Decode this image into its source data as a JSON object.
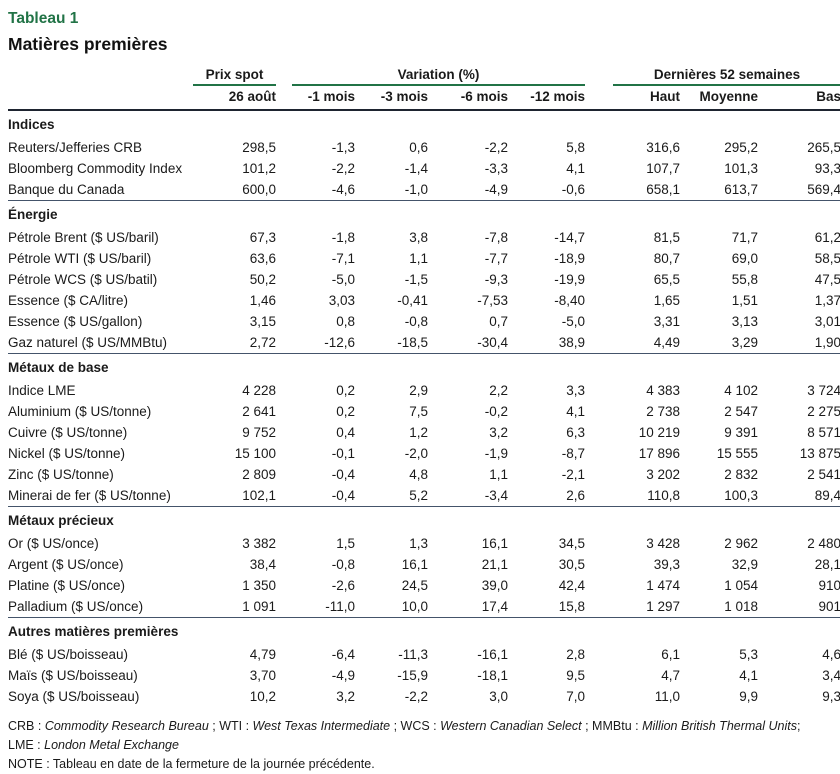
{
  "title": {
    "tag": "Tableau 1",
    "subtitle": "Matières premières"
  },
  "colors": {
    "accent_green": "#217346",
    "rule_thick": "#1e2430",
    "rule_thin": "#44546a"
  },
  "table": {
    "groups": [
      "Prix spot",
      "Variation (%)",
      "Dernières 52 semaines"
    ],
    "columns": [
      "26 août",
      "-1 mois",
      "-3 mois",
      "-6 mois",
      "-12 mois",
      "Haut",
      "Moyenne",
      "Bas"
    ],
    "sections": [
      {
        "name": "Indices",
        "rows": [
          {
            "label": "Reuters/Jefferies CRB",
            "values": [
              "298,5",
              "-1,3",
              "0,6",
              "-2,2",
              "5,8",
              "316,6",
              "295,2",
              "265,5"
            ]
          },
          {
            "label": "Bloomberg Commodity Index",
            "values": [
              "101,2",
              "-2,2",
              "-1,4",
              "-3,3",
              "4,1",
              "107,7",
              "101,3",
              "93,3"
            ]
          },
          {
            "label": "Banque du Canada",
            "values": [
              "600,0",
              "-4,6",
              "-1,0",
              "-4,9",
              "-0,6",
              "658,1",
              "613,7",
              "569,4"
            ]
          }
        ]
      },
      {
        "name": "Énergie",
        "rows": [
          {
            "label": "Pétrole Brent ($ US/baril)",
            "values": [
              "67,3",
              "-1,8",
              "3,8",
              "-7,8",
              "-14,7",
              "81,5",
              "71,7",
              "61,2"
            ]
          },
          {
            "label": "Pétrole WTI ($ US/baril)",
            "values": [
              "63,6",
              "-7,1",
              "1,1",
              "-7,7",
              "-18,9",
              "80,7",
              "69,0",
              "58,5"
            ]
          },
          {
            "label": "Pétrole WCS ($ US/batil)",
            "values": [
              "50,2",
              "-5,0",
              "-1,5",
              "-9,3",
              "-19,9",
              "65,5",
              "55,8",
              "47,5"
            ]
          },
          {
            "label": "Essence ($ CA/litre)",
            "values": [
              "1,46",
              "3,03",
              "-0,41",
              "-7,53",
              "-8,40",
              "1,65",
              "1,51",
              "1,37"
            ]
          },
          {
            "label": "Essence ($ US/gallon)",
            "values": [
              "3,15",
              "0,8",
              "-0,8",
              "0,7",
              "-5,0",
              "3,31",
              "3,13",
              "3,01"
            ]
          },
          {
            "label": "Gaz naturel ($ US/MMBtu)",
            "values": [
              "2,72",
              "-12,6",
              "-18,5",
              "-30,4",
              "38,9",
              "4,49",
              "3,29",
              "1,90"
            ]
          }
        ]
      },
      {
        "name": "Métaux de base",
        "rows": [
          {
            "label": "Indice LME",
            "values": [
              "4 228",
              "0,2",
              "2,9",
              "2,2",
              "3,3",
              "4 383",
              "4 102",
              "3 724"
            ]
          },
          {
            "label": "Aluminium ($ US/tonne)",
            "values": [
              "2 641",
              "0,2",
              "7,5",
              "-0,2",
              "4,1",
              "2 738",
              "2 547",
              "2 275"
            ]
          },
          {
            "label": "Cuivre ($ US/tonne)",
            "values": [
              "9 752",
              "0,4",
              "1,2",
              "3,2",
              "6,3",
              "10 219",
              "9 391",
              "8 571"
            ]
          },
          {
            "label": "Nickel ($ US/tonne)",
            "values": [
              "15 100",
              "-0,1",
              "-2,0",
              "-1,9",
              "-8,7",
              "17 896",
              "15 555",
              "13 875"
            ]
          },
          {
            "label": "Zinc ($ US/tonne)",
            "values": [
              "2 809",
              "-0,4",
              "4,8",
              "1,1",
              "-2,1",
              "3 202",
              "2 832",
              "2 541"
            ]
          },
          {
            "label": "Minerai de fer ($ US/tonne)",
            "values": [
              "102,1",
              "-0,4",
              "5,2",
              "-3,4",
              "2,6",
              "110,8",
              "100,3",
              "89,4"
            ]
          }
        ]
      },
      {
        "name": "Métaux précieux",
        "rows": [
          {
            "label": "Or ($ US/once)",
            "values": [
              "3 382",
              "1,5",
              "1,3",
              "16,1",
              "34,5",
              "3 428",
              "2 962",
              "2 480"
            ]
          },
          {
            "label": "Argent ($ US/once)",
            "values": [
              "38,4",
              "-0,8",
              "16,1",
              "21,1",
              "30,5",
              "39,3",
              "32,9",
              "28,1"
            ]
          },
          {
            "label": "Platine ($ US/once)",
            "values": [
              "1 350",
              "-2,6",
              "24,5",
              "39,0",
              "42,4",
              "1 474",
              "1 054",
              "910"
            ]
          },
          {
            "label": "Palladium ($ US/once)",
            "values": [
              "1 091",
              "-11,0",
              "10,0",
              "17,4",
              "15,8",
              "1 297",
              "1 018",
              "901"
            ]
          }
        ]
      },
      {
        "name": "Autres matières premières",
        "rows": [
          {
            "label": "Blé ($ US/boisseau)",
            "values": [
              "4,79",
              "-6,4",
              "-11,3",
              "-16,1",
              "2,8",
              "6,1",
              "5,3",
              "4,6"
            ]
          },
          {
            "label": "Maïs ($ US/boisseau)",
            "values": [
              "3,70",
              "-4,9",
              "-15,9",
              "-18,1",
              "9,5",
              "4,7",
              "4,1",
              "3,4"
            ]
          },
          {
            "label": "Soya ($ US/boisseau)",
            "values": [
              "10,2",
              "3,2",
              "-2,2",
              "3,0",
              "7,0",
              "11,0",
              "9,9",
              "9,3"
            ]
          }
        ]
      }
    ]
  },
  "footnotes": [
    [
      {
        "text": "CRB : ",
        "italic": false
      },
      {
        "text": "Commodity Research Bureau",
        "italic": true
      },
      {
        "text": " ; WTI : ",
        "italic": false
      },
      {
        "text": "West Texas Intermediate",
        "italic": true
      },
      {
        "text": " ; WCS : ",
        "italic": false
      },
      {
        "text": "Western Canadian Select",
        "italic": true
      },
      {
        "text": " ; MMBtu : ",
        "italic": false
      },
      {
        "text": "Million British Thermal Units",
        "italic": true
      },
      {
        "text": ";",
        "italic": false
      }
    ],
    [
      {
        "text": "LME : ",
        "italic": false
      },
      {
        "text": "London Metal Exchange",
        "italic": true
      }
    ],
    [
      {
        "text": "NOTE : Tableau en date de la fermeture de la journée précédente.",
        "italic": false
      }
    ]
  ]
}
